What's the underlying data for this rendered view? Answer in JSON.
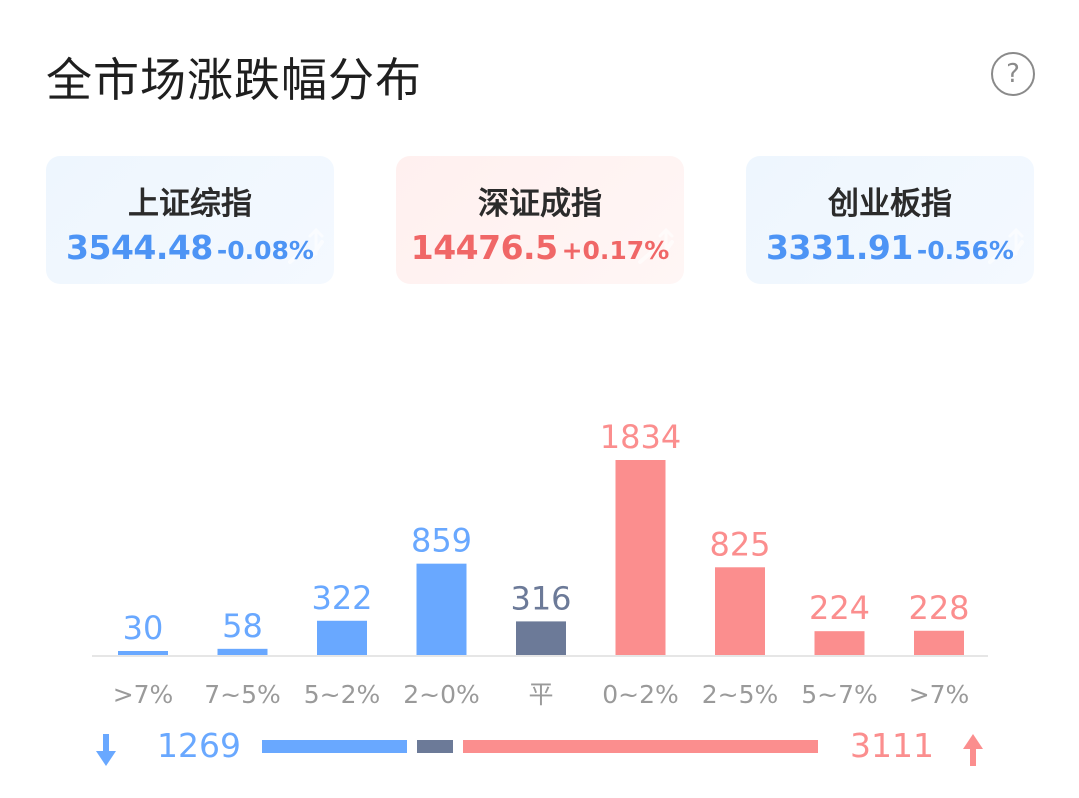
{
  "title": "全市场涨跌幅分布",
  "help_icon": "question-circle-icon",
  "colors": {
    "down": "#69a8ff",
    "flat": "#6c7a98",
    "up": "#fb8e8e",
    "down_text": "#4d94f5",
    "up_text": "#f06767"
  },
  "indices": [
    {
      "name": "上证综指",
      "value": "3544.48",
      "change": "-0.08%",
      "trend": "down"
    },
    {
      "name": "深证成指",
      "value": "14476.5",
      "change": "+0.17%",
      "trend": "up"
    },
    {
      "name": "创业板指",
      "value": "3331.91",
      "change": "-0.56%",
      "trend": "down"
    }
  ],
  "chart_data": {
    "type": "bar",
    "categories": [
      ">7%",
      "7~5%",
      "5~2%",
      "2~0%",
      "平",
      "0~2%",
      "2~5%",
      "5~7%",
      ">7%"
    ],
    "values": [
      30,
      58,
      322,
      859,
      316,
      1834,
      825,
      224,
      228
    ],
    "groups": [
      "down",
      "down",
      "down",
      "down",
      "flat",
      "up",
      "up",
      "up",
      "up"
    ],
    "ylim": [
      0,
      1834
    ],
    "grid": false,
    "legend": "none"
  },
  "summary": {
    "down_count": "1269",
    "up_count": "3111",
    "down_total": 1269,
    "flat_total": 316,
    "up_total": 3111,
    "down_icon": "arrow-down-icon",
    "up_icon": "arrow-up-icon"
  }
}
